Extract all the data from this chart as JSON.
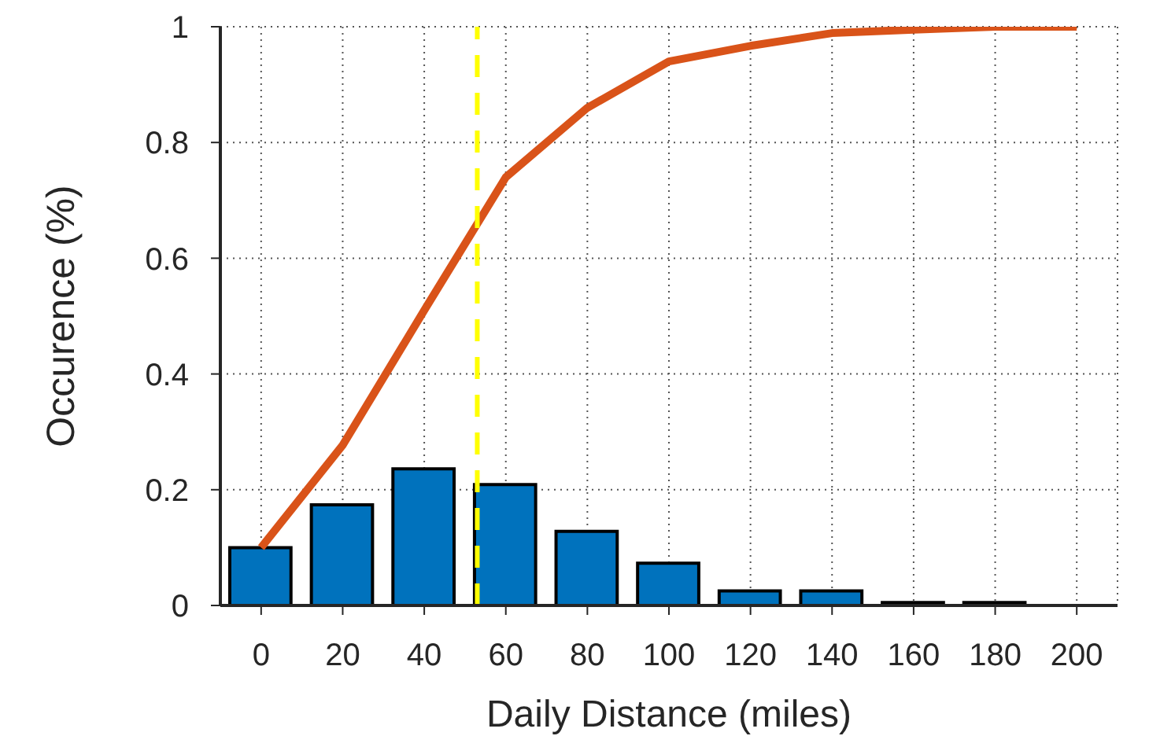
{
  "chart_data": {
    "type": "bar",
    "xlabel": "Daily Distance (miles)",
    "ylabel": "Occurence (%)",
    "x": [
      0,
      20,
      40,
      60,
      80,
      100,
      120,
      140,
      160,
      180,
      200
    ],
    "series": [
      {
        "color": "#0072bd",
        "values": [
          0.1,
          0.174,
          0.236,
          0.209,
          0.128,
          0.073,
          0.025,
          0.025,
          0.005,
          0.005,
          0
        ]
      },
      {
        "type": "line",
        "color": "#d95319",
        "values": [
          0.1,
          0.277,
          0.51,
          0.74,
          0.86,
          0.94,
          0.967,
          0.989,
          0.995,
          1.0,
          1.0
        ]
      }
    ],
    "xlim": [
      -10,
      210
    ],
    "xticks": [
      0,
      20,
      40,
      60,
      80,
      100,
      120,
      140,
      160,
      180,
      200
    ],
    "ylim": [
      0,
      1
    ],
    "yticks": [
      0,
      0.2,
      0.4,
      0.6,
      0.8,
      1
    ],
    "grid": true,
    "ref_lines": [
      {
        "axis": "x",
        "value": 53,
        "color": "#ffff00",
        "line_style": "dashed"
      }
    ]
  }
}
